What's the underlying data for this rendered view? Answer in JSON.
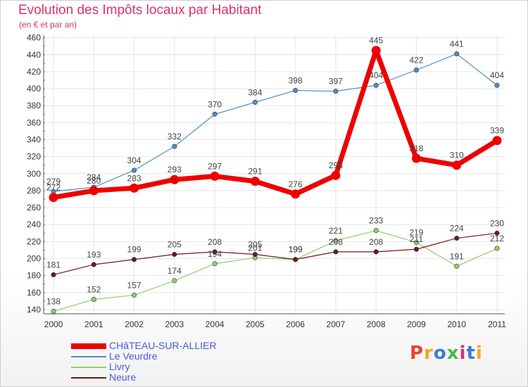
{
  "chart_data": {
    "type": "line",
    "title": "Evolution des Impôts locaux par Habitant",
    "subtitle": "(en € et par an)",
    "xlabel": "",
    "ylabel": "",
    "ylim": [
      135,
      463
    ],
    "yticks": [
      140,
      160,
      180,
      200,
      220,
      240,
      260,
      280,
      300,
      320,
      340,
      360,
      380,
      400,
      420,
      440,
      460
    ],
    "categories": [
      "2000",
      "2001",
      "2002",
      "2003",
      "2004",
      "2005",
      "2006",
      "2007",
      "2008",
      "2009",
      "2010",
      "2011"
    ],
    "grid": true,
    "legend_position": "bottom-left",
    "series": [
      {
        "name": "CHâTEAU-SUR-ALLIER",
        "color": "#ee0000",
        "values": [
          272,
          280,
          283,
          293,
          297,
          291,
          276,
          298,
          445,
          318,
          310,
          339
        ]
      },
      {
        "name": "Le Veurdre",
        "color": "#4a90c8",
        "values": [
          279,
          284,
          304,
          332,
          370,
          384,
          398,
          397,
          404,
          422,
          441,
          404
        ]
      },
      {
        "name": "Livry",
        "color": "#8fd06a",
        "values": [
          138,
          152,
          157,
          174,
          194,
          201,
          199,
          221,
          233,
          219,
          191,
          212
        ]
      },
      {
        "name": "Neure",
        "color": "#6b1a1a",
        "values": [
          181,
          193,
          199,
          205,
          208,
          205,
          199,
          208,
          208,
          211,
          224,
          230
        ]
      }
    ]
  },
  "logo": {
    "text": "Proxiti",
    "colors": [
      "#e8442a",
      "#f5a623",
      "#3a7bd5",
      "#4db848",
      "#d8336e",
      "#3a7bd5",
      "#f5a623"
    ]
  }
}
